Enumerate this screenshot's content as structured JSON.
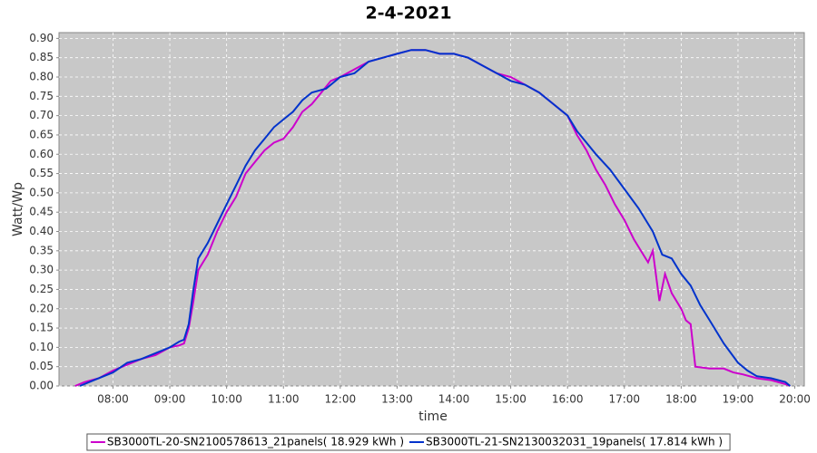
{
  "chart_data": {
    "type": "line",
    "title": "2-4-2021",
    "xlabel": "time",
    "ylabel": "Watt/Wp",
    "xlim": [
      "07:03",
      "20:10"
    ],
    "xticks": [
      "08:00",
      "09:00",
      "10:00",
      "11:00",
      "12:00",
      "13:00",
      "14:00",
      "15:00",
      "16:00",
      "17:00",
      "18:00",
      "19:00",
      "20:00"
    ],
    "ylim": [
      0,
      0.915
    ],
    "yticks": [
      {
        "value": 0,
        "label": "0.00"
      },
      {
        "value": 0.05,
        "label": "0.05"
      },
      {
        "value": 0.1,
        "label": "0.10"
      },
      {
        "value": 0.15,
        "label": "0.15"
      },
      {
        "value": 0.2,
        "label": "0.20"
      },
      {
        "value": 0.25,
        "label": "0.25"
      },
      {
        "value": 0.3,
        "label": "0.30"
      },
      {
        "value": 0.35,
        "label": "0.35"
      },
      {
        "value": 0.4,
        "label": "0.40"
      },
      {
        "value": 0.45,
        "label": "0.45"
      },
      {
        "value": 0.5,
        "label": "0.50"
      },
      {
        "value": 0.55,
        "label": "0.55"
      },
      {
        "value": 0.6,
        "label": "0.60"
      },
      {
        "value": 0.65,
        "label": "0.65"
      },
      {
        "value": 0.7,
        "label": "0.70"
      },
      {
        "value": 0.75,
        "label": "0.75"
      },
      {
        "value": 0.8,
        "label": "0.80"
      },
      {
        "value": 0.85,
        "label": "0.85"
      },
      {
        "value": 0.9,
        "label": "0.90"
      }
    ],
    "grid": true,
    "legend": "bottom",
    "series": [
      {
        "name": "SB3000TL-20-SN2100578613_21panels( 18.929 kWh )",
        "color": "#cc00cc",
        "x": [
          "07:20",
          "07:30",
          "07:45",
          "08:00",
          "08:10",
          "08:20",
          "08:30",
          "08:45",
          "09:00",
          "09:10",
          "09:15",
          "09:20",
          "09:25",
          "09:30",
          "09:40",
          "09:50",
          "10:00",
          "10:10",
          "10:20",
          "10:30",
          "10:40",
          "10:50",
          "11:00",
          "11:10",
          "11:20",
          "11:30",
          "11:40",
          "11:50",
          "12:00",
          "12:15",
          "12:30",
          "12:45",
          "13:00",
          "13:15",
          "13:30",
          "13:45",
          "14:00",
          "14:15",
          "14:30",
          "14:45",
          "15:00",
          "15:15",
          "15:30",
          "15:45",
          "16:00",
          "16:10",
          "16:20",
          "16:30",
          "16:40",
          "16:50",
          "17:00",
          "17:10",
          "17:20",
          "17:25",
          "17:30",
          "17:37",
          "17:43",
          "17:50",
          "18:00",
          "18:05",
          "18:10",
          "18:15",
          "18:30",
          "18:45",
          "18:55",
          "19:05",
          "19:20",
          "19:35",
          "19:50",
          "19:55"
        ],
        "values": [
          0,
          0.01,
          0.02,
          0.04,
          0.05,
          0.06,
          0.07,
          0.08,
          0.1,
          0.105,
          0.11,
          0.15,
          0.22,
          0.3,
          0.34,
          0.4,
          0.45,
          0.49,
          0.55,
          0.58,
          0.61,
          0.63,
          0.64,
          0.67,
          0.71,
          0.73,
          0.76,
          0.79,
          0.8,
          0.82,
          0.84,
          0.85,
          0.86,
          0.87,
          0.87,
          0.86,
          0.86,
          0.85,
          0.83,
          0.81,
          0.8,
          0.78,
          0.76,
          0.73,
          0.7,
          0.65,
          0.61,
          0.56,
          0.52,
          0.47,
          0.43,
          0.38,
          0.34,
          0.32,
          0.35,
          0.22,
          0.29,
          0.24,
          0.2,
          0.17,
          0.16,
          0.05,
          0.045,
          0.045,
          0.035,
          0.03,
          0.02,
          0.015,
          0.005,
          0
        ]
      },
      {
        "name": "SB3000TL-21-SN2130032031_19panels( 17.814 kWh )",
        "color": "#0033cc",
        "x": [
          "07:25",
          "07:40",
          "08:00",
          "08:15",
          "08:30",
          "08:45",
          "09:00",
          "09:10",
          "09:15",
          "09:20",
          "09:25",
          "09:30",
          "09:40",
          "09:50",
          "10:00",
          "10:10",
          "10:20",
          "10:30",
          "10:40",
          "10:50",
          "11:00",
          "11:10",
          "11:20",
          "11:30",
          "11:45",
          "12:00",
          "12:15",
          "12:30",
          "12:45",
          "13:00",
          "13:15",
          "13:30",
          "13:45",
          "14:00",
          "14:15",
          "14:30",
          "14:45",
          "15:00",
          "15:15",
          "15:30",
          "15:45",
          "16:00",
          "16:10",
          "16:20",
          "16:30",
          "16:45",
          "17:00",
          "17:15",
          "17:30",
          "17:40",
          "17:50",
          "18:00",
          "18:10",
          "18:20",
          "18:30",
          "18:45",
          "19:00",
          "19:10",
          "19:20",
          "19:35",
          "19:50",
          "19:55"
        ],
        "values": [
          0,
          0.015,
          0.035,
          0.06,
          0.07,
          0.085,
          0.1,
          0.115,
          0.12,
          0.16,
          0.25,
          0.33,
          0.37,
          0.42,
          0.47,
          0.52,
          0.57,
          0.61,
          0.64,
          0.67,
          0.69,
          0.71,
          0.74,
          0.76,
          0.77,
          0.8,
          0.81,
          0.84,
          0.85,
          0.86,
          0.87,
          0.87,
          0.86,
          0.86,
          0.85,
          0.83,
          0.81,
          0.79,
          0.78,
          0.76,
          0.73,
          0.7,
          0.66,
          0.63,
          0.6,
          0.56,
          0.51,
          0.46,
          0.4,
          0.34,
          0.33,
          0.29,
          0.26,
          0.21,
          0.17,
          0.11,
          0.06,
          0.04,
          0.025,
          0.02,
          0.01,
          0
        ]
      }
    ]
  }
}
